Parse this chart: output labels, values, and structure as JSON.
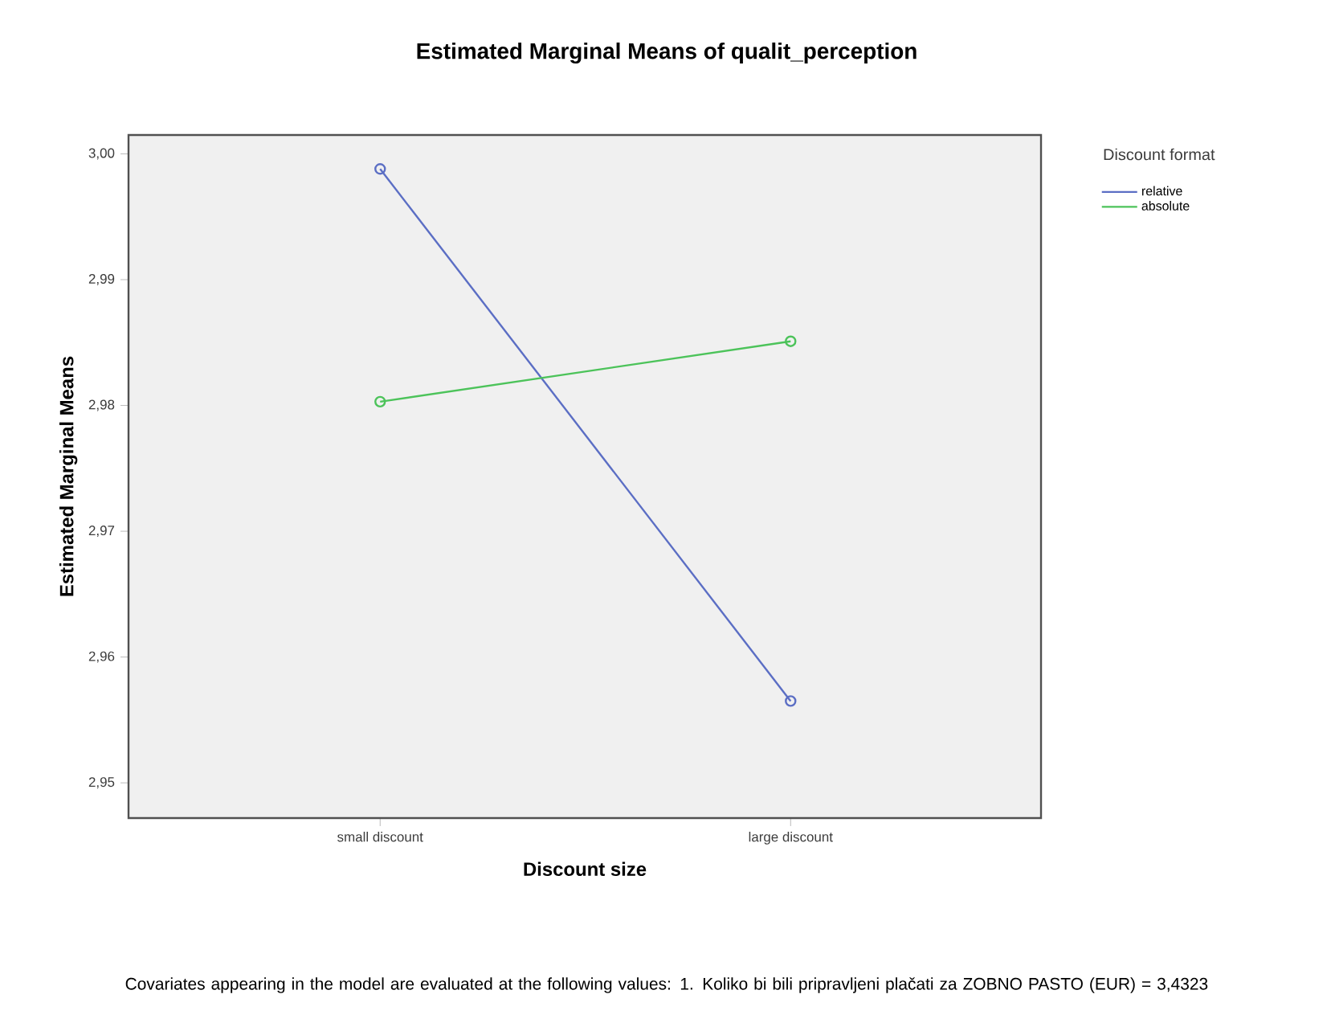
{
  "chart_data": {
    "type": "line",
    "title": "Estimated Marginal Means of qualit_perception",
    "xlabel": "Discount size",
    "ylabel": "Estimated Marginal Means",
    "legend_title": "Discount format",
    "categories": [
      "small discount",
      "large discount"
    ],
    "series": [
      {
        "name": "relative",
        "color": "#5b6ec4",
        "values": [
          2.9988,
          2.9565
        ]
      },
      {
        "name": "absolute",
        "color": "#4cc35a",
        "values": [
          2.9803,
          2.9851
        ]
      }
    ],
    "ylim": [
      2.9472,
      3.0015
    ],
    "yticks": [
      {
        "value": 2.95,
        "label": "2,95"
      },
      {
        "value": 2.96,
        "label": "2,96"
      },
      {
        "value": 2.97,
        "label": "2,97"
      },
      {
        "value": 2.98,
        "label": "2,98"
      },
      {
        "value": 2.99,
        "label": "2,99"
      },
      {
        "value": 3.0,
        "label": "3,00"
      }
    ],
    "legend": "top right",
    "marker": "circle",
    "line_style": "solid",
    "annotations": [
      "Covariates appearing in the model are evaluated at the following values: 1. Koliko bi bili pripravljeni plačati za ZOBNO PASTO (EUR) = 3,4323"
    ]
  }
}
